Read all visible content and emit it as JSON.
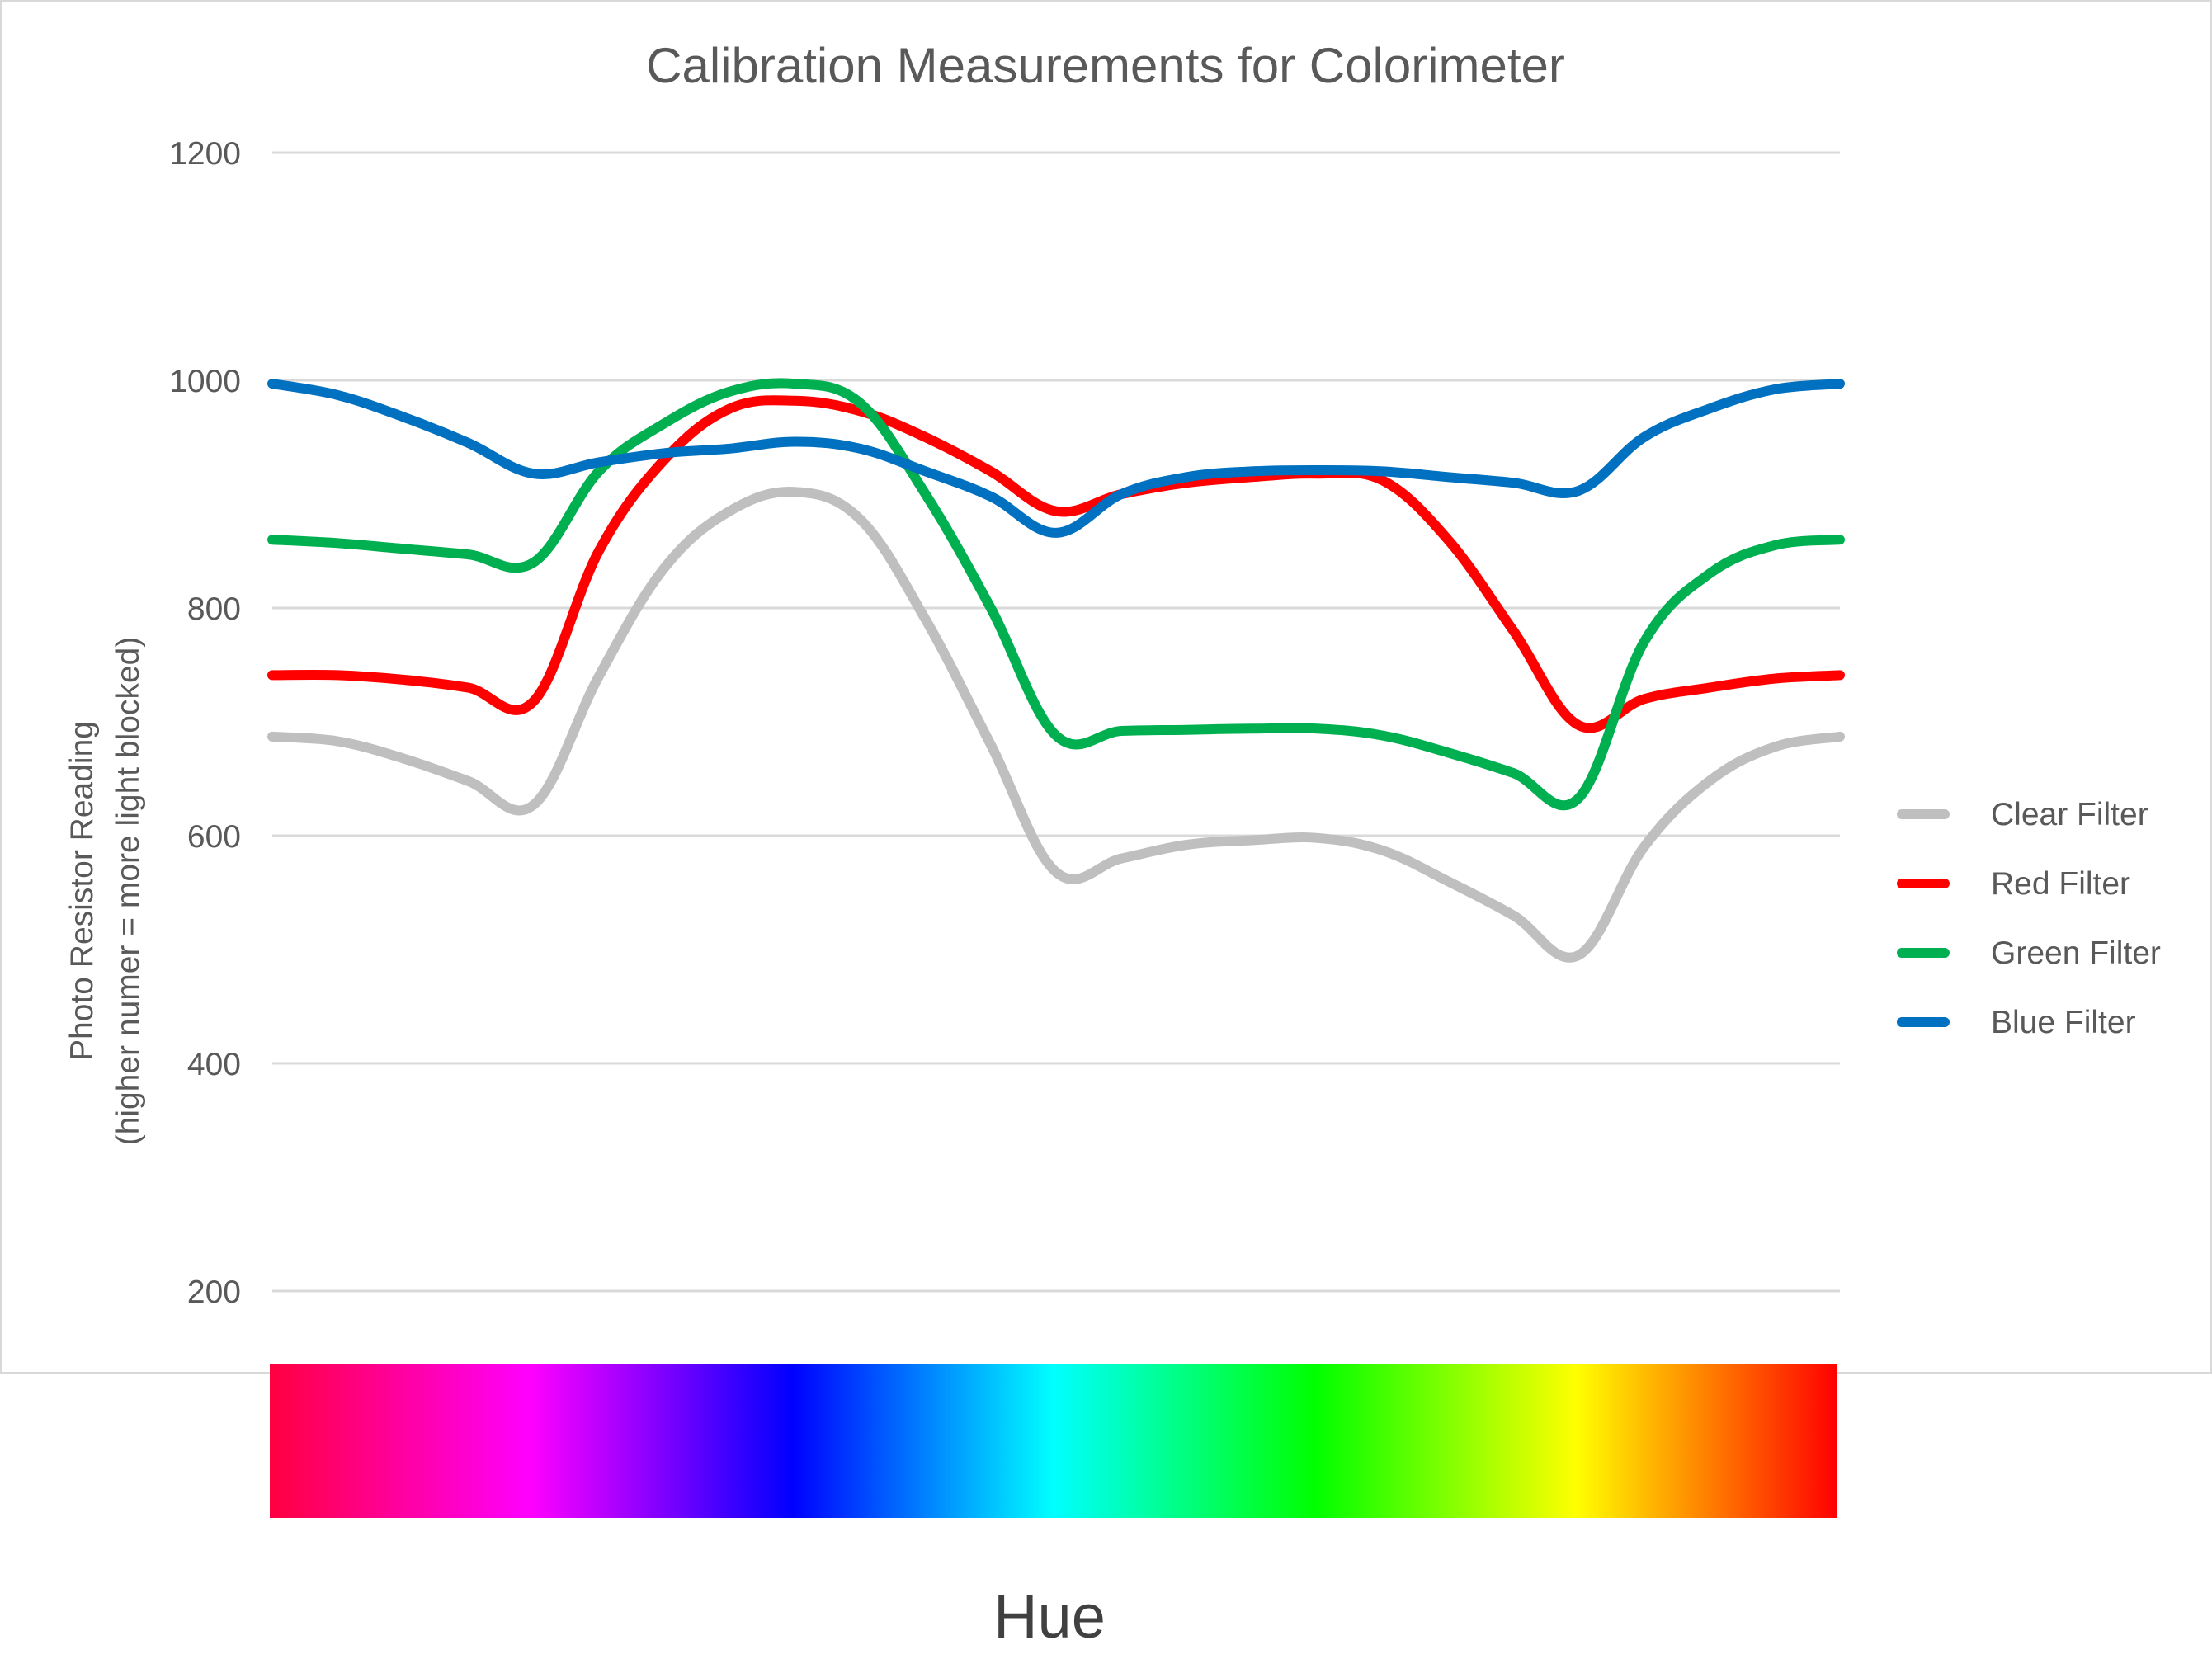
{
  "chart_data": {
    "type": "line",
    "title": "Calibration Measurements for Colorimeter",
    "ylabel_line1": "Photo Resistor Reading",
    "ylabel_line2": "(higher numer = more light blocked)",
    "xlabel": "Hue",
    "ylim": [
      200,
      1200
    ],
    "yticks": [
      "200",
      "400",
      "600",
      "800",
      "1000",
      "1200"
    ],
    "grid": "horizontal",
    "legend_position": "right",
    "x_domain": [
      0,
      360
    ],
    "x": [
      0,
      15,
      30,
      45,
      60,
      75,
      90,
      105,
      120,
      135,
      150,
      165,
      180,
      195,
      210,
      225,
      240,
      255,
      270,
      285,
      300,
      315,
      330,
      345,
      360
    ],
    "series": [
      {
        "name": "Clear Filter",
        "color": "#bfbfbf",
        "values": [
          687,
          683,
          668,
          648,
          627,
          740,
          835,
          885,
          902,
          878,
          790,
          680,
          568,
          580,
          592,
          596,
          598,
          587,
          560,
          530,
          495,
          590,
          648,
          678,
          687
        ]
      },
      {
        "name": "Red Filter",
        "color": "#ff0000",
        "values": [
          741,
          741,
          737,
          730,
          718,
          850,
          930,
          975,
          982,
          973,
          950,
          920,
          885,
          900,
          910,
          915,
          918,
          912,
          860,
          780,
          697,
          720,
          730,
          738,
          741
        ]
      },
      {
        "name": "Green Filter",
        "color": "#00b050",
        "values": [
          860,
          857,
          852,
          847,
          840,
          920,
          962,
          990,
          997,
          980,
          900,
          800,
          688,
          692,
          693,
          694,
          694,
          688,
          673,
          655,
          633,
          770,
          830,
          855,
          860
        ]
      },
      {
        "name": "Blue Filter",
        "color": "#0070c0",
        "values": [
          997,
          987,
          968,
          945,
          918,
          928,
          936,
          940,
          946,
          940,
          920,
          898,
          866,
          900,
          915,
          920,
          921,
          920,
          915,
          910,
          903,
          950,
          975,
          992,
          997
        ]
      }
    ],
    "hue_band": [
      "#ff0040",
      "#ff00ff",
      "#0000ff",
      "#00ffff",
      "#00ff00",
      "#ffff00",
      "#ff0000"
    ]
  }
}
